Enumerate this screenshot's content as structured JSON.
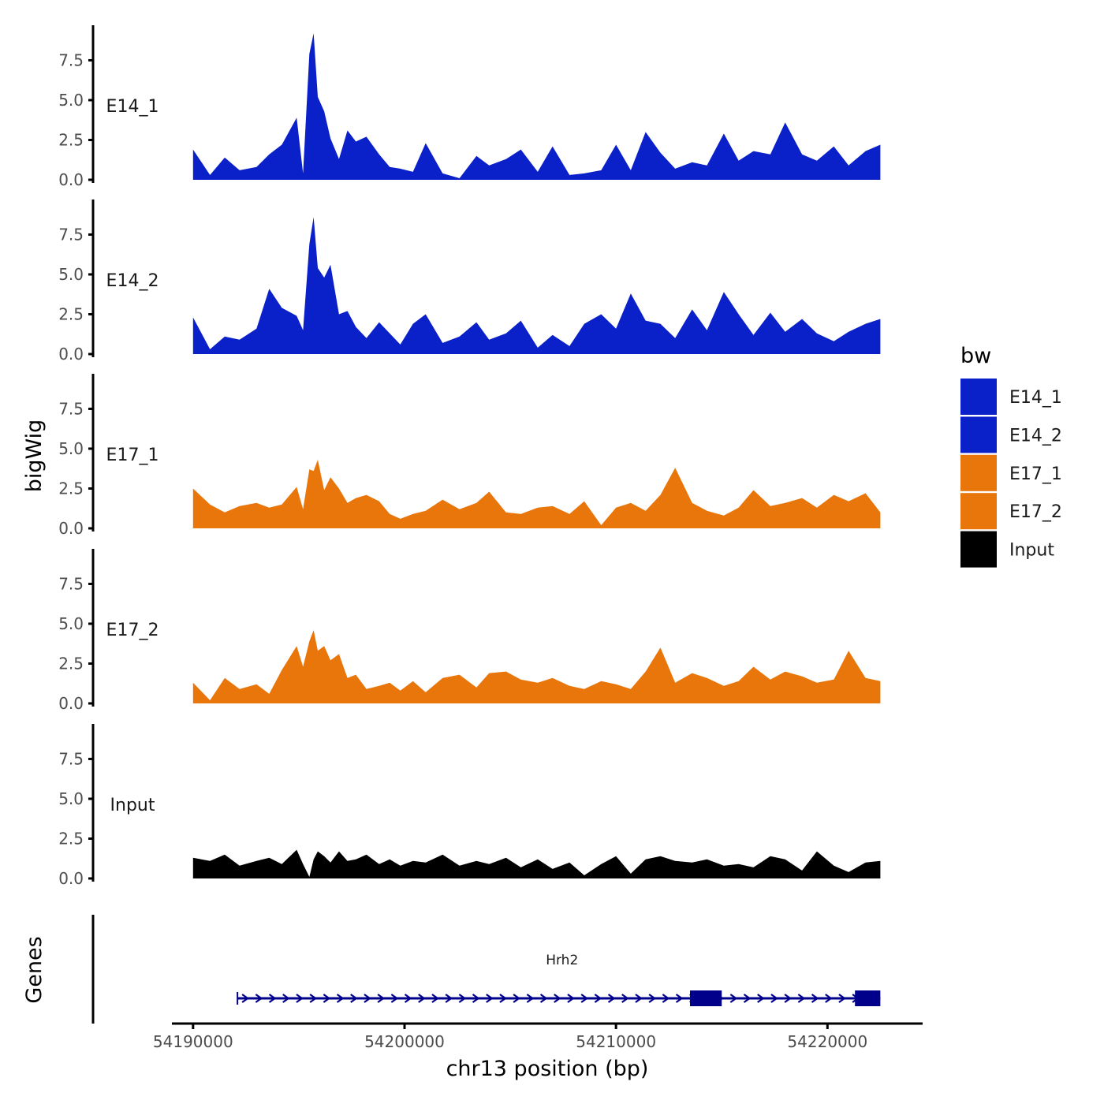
{
  "chart_data": {
    "type": "area",
    "title": "",
    "xlabel": "chr13 position (bp)",
    "ylabel": "bigWig",
    "genes_panel_label": "Genes",
    "xlim": [
      54189000,
      54224500
    ],
    "ylim": [
      0,
      9.7
    ],
    "x_ticks": [
      54190000,
      54200000,
      54210000,
      54220000
    ],
    "x_tick_labels": [
      "54190000",
      "54200000",
      "54210000",
      "54220000"
    ],
    "y_ticks": [
      0,
      2.5,
      5,
      7.5
    ],
    "y_tick_labels": [
      "0.0",
      "2.5",
      "5.0",
      "7.5"
    ],
    "grid": false,
    "legend": {
      "title": "bw",
      "position": "right",
      "entries": [
        {
          "label": "E14_1",
          "color": "#0a20c8"
        },
        {
          "label": "E14_2",
          "color": "#0a20c8"
        },
        {
          "label": "E17_1",
          "color": "#e8760a"
        },
        {
          "label": "E17_2",
          "color": "#e8760a"
        },
        {
          "label": "Input",
          "color": "#000000"
        }
      ]
    },
    "tracks": [
      {
        "name": "E14_1",
        "color": "#0a20c8",
        "x": [
          54190000,
          54190800,
          54191500,
          54192200,
          54193000,
          54193600,
          54194200,
          54194900,
          54195200,
          54195500,
          54195700,
          54195900,
          54196200,
          54196500,
          54196900,
          54197300,
          54197700,
          54198200,
          54198800,
          54199300,
          54199800,
          54200400,
          54201000,
          54201800,
          54202600,
          54203400,
          54204000,
          54204800,
          54205500,
          54206300,
          54207000,
          54207800,
          54208500,
          54209300,
          54210000,
          54210700,
          54211400,
          54212100,
          54212800,
          54213600,
          54214300,
          54215100,
          54215800,
          54216500,
          54217300,
          54218000,
          54218800,
          54219500,
          54220300,
          54221000,
          54221800,
          54222500
        ],
        "values": [
          1.9,
          0.3,
          1.4,
          0.6,
          0.8,
          1.6,
          2.2,
          3.9,
          0.4,
          7.9,
          9.2,
          5.2,
          4.3,
          2.6,
          1.3,
          3.1,
          2.4,
          2.7,
          1.6,
          0.8,
          0.7,
          0.5,
          2.3,
          0.4,
          0.1,
          1.5,
          0.9,
          1.3,
          1.9,
          0.5,
          2.1,
          0.3,
          0.4,
          0.6,
          2.2,
          0.6,
          3.0,
          1.7,
          0.7,
          1.1,
          0.9,
          2.9,
          1.2,
          1.8,
          1.6,
          3.6,
          1.6,
          1.2,
          2.1,
          0.9,
          1.8,
          2.2
        ]
      },
      {
        "name": "E14_2",
        "color": "#0a20c8",
        "x": [
          54190000,
          54190800,
          54191500,
          54192200,
          54193000,
          54193600,
          54194200,
          54194900,
          54195200,
          54195500,
          54195700,
          54195900,
          54196200,
          54196500,
          54196900,
          54197300,
          54197700,
          54198200,
          54198800,
          54199300,
          54199800,
          54200400,
          54201000,
          54201800,
          54202600,
          54203400,
          54204000,
          54204800,
          54205500,
          54206300,
          54207000,
          54207800,
          54208500,
          54209300,
          54210000,
          54210700,
          54211400,
          54212100,
          54212800,
          54213600,
          54214300,
          54215100,
          54215800,
          54216500,
          54217300,
          54218000,
          54218800,
          54219500,
          54220300,
          54221000,
          54221800,
          54222500
        ],
        "values": [
          2.3,
          0.3,
          1.1,
          0.9,
          1.6,
          4.1,
          2.9,
          2.4,
          1.5,
          6.9,
          8.6,
          5.4,
          4.8,
          5.6,
          2.5,
          2.7,
          1.7,
          1.0,
          2.0,
          1.3,
          0.6,
          1.9,
          2.5,
          0.7,
          1.1,
          2.0,
          0.9,
          1.3,
          2.1,
          0.4,
          1.2,
          0.5,
          1.9,
          2.5,
          1.6,
          3.8,
          2.1,
          1.9,
          1.0,
          2.8,
          1.5,
          3.9,
          2.5,
          1.2,
          2.6,
          1.4,
          2.2,
          1.3,
          0.8,
          1.4,
          1.9,
          2.2
        ]
      },
      {
        "name": "E17_1",
        "color": "#e8760a",
        "x": [
          54190000,
          54190800,
          54191500,
          54192200,
          54193000,
          54193600,
          54194200,
          54194900,
          54195200,
          54195500,
          54195700,
          54195900,
          54196200,
          54196500,
          54196900,
          54197300,
          54197700,
          54198200,
          54198800,
          54199300,
          54199800,
          54200400,
          54201000,
          54201800,
          54202600,
          54203400,
          54204000,
          54204800,
          54205500,
          54206300,
          54207000,
          54207800,
          54208500,
          54209300,
          54210000,
          54210700,
          54211400,
          54212100,
          54212800,
          54213600,
          54214300,
          54215100,
          54215800,
          54216500,
          54217300,
          54218000,
          54218800,
          54219500,
          54220300,
          54221000,
          54221800,
          54222500
        ],
        "values": [
          2.5,
          1.5,
          1.0,
          1.4,
          1.6,
          1.3,
          1.5,
          2.6,
          1.2,
          3.7,
          3.6,
          4.3,
          2.4,
          3.2,
          2.5,
          1.6,
          1.9,
          2.1,
          1.7,
          0.9,
          0.6,
          0.9,
          1.1,
          1.8,
          1.2,
          1.6,
          2.3,
          1.0,
          0.9,
          1.3,
          1.4,
          0.9,
          1.7,
          0.2,
          1.3,
          1.6,
          1.1,
          2.1,
          3.8,
          1.6,
          1.1,
          0.8,
          1.3,
          2.4,
          1.4,
          1.6,
          1.9,
          1.3,
          2.1,
          1.7,
          2.2,
          1.0
        ]
      },
      {
        "name": "E17_2",
        "color": "#e8760a",
        "x": [
          54190000,
          54190800,
          54191500,
          54192200,
          54193000,
          54193600,
          54194200,
          54194900,
          54195200,
          54195500,
          54195700,
          54195900,
          54196200,
          54196500,
          54196900,
          54197300,
          54197700,
          54198200,
          54198800,
          54199300,
          54199800,
          54200400,
          54201000,
          54201800,
          54202600,
          54203400,
          54204000,
          54204800,
          54205500,
          54206300,
          54207000,
          54207800,
          54208500,
          54209300,
          54210000,
          54210700,
          54211400,
          54212100,
          54212800,
          54213600,
          54214300,
          54215100,
          54215800,
          54216500,
          54217300,
          54218000,
          54218800,
          54219500,
          54220300,
          54221000,
          54221800,
          54222500
        ],
        "values": [
          1.3,
          0.2,
          1.6,
          0.9,
          1.2,
          0.6,
          2.1,
          3.6,
          2.3,
          3.9,
          4.6,
          3.3,
          3.6,
          2.7,
          3.1,
          1.6,
          1.8,
          0.9,
          1.1,
          1.3,
          0.8,
          1.4,
          0.7,
          1.6,
          1.8,
          1.0,
          1.9,
          2.0,
          1.5,
          1.3,
          1.6,
          1.1,
          0.9,
          1.4,
          1.2,
          0.9,
          2.0,
          3.5,
          1.3,
          1.9,
          1.6,
          1.1,
          1.4,
          2.3,
          1.5,
          2.0,
          1.7,
          1.3,
          1.5,
          3.3,
          1.6,
          1.4
        ]
      },
      {
        "name": "Input",
        "color": "#000000",
        "x": [
          54190000,
          54190800,
          54191500,
          54192200,
          54193000,
          54193600,
          54194200,
          54194900,
          54195200,
          54195500,
          54195700,
          54195900,
          54196200,
          54196500,
          54196900,
          54197300,
          54197700,
          54198200,
          54198800,
          54199300,
          54199800,
          54200400,
          54201000,
          54201800,
          54202600,
          54203400,
          54204000,
          54204800,
          54205500,
          54206300,
          54207000,
          54207800,
          54208500,
          54209300,
          54210000,
          54210700,
          54211400,
          54212100,
          54212800,
          54213600,
          54214300,
          54215100,
          54215800,
          54216500,
          54217300,
          54218000,
          54218800,
          54219500,
          54220300,
          54221000,
          54221800,
          54222500
        ],
        "values": [
          1.3,
          1.1,
          1.5,
          0.8,
          1.1,
          1.3,
          0.9,
          1.8,
          0.9,
          0.1,
          1.2,
          1.7,
          1.4,
          1.0,
          1.7,
          1.1,
          1.2,
          1.5,
          0.9,
          1.2,
          0.8,
          1.1,
          1.0,
          1.5,
          0.8,
          1.1,
          0.9,
          1.3,
          0.7,
          1.2,
          0.6,
          1.0,
          0.2,
          0.9,
          1.4,
          0.3,
          1.2,
          1.4,
          1.1,
          1.0,
          1.2,
          0.8,
          0.9,
          0.7,
          1.4,
          1.2,
          0.5,
          1.7,
          0.8,
          0.4,
          1.0,
          1.1
        ]
      }
    ],
    "gene": {
      "name": "Hrh2",
      "strand": "+",
      "start": 54192100,
      "end": 54222500,
      "exons": [
        [
          54213500,
          54215000
        ],
        [
          54221300,
          54222500
        ]
      ],
      "color": "#00008b"
    }
  }
}
